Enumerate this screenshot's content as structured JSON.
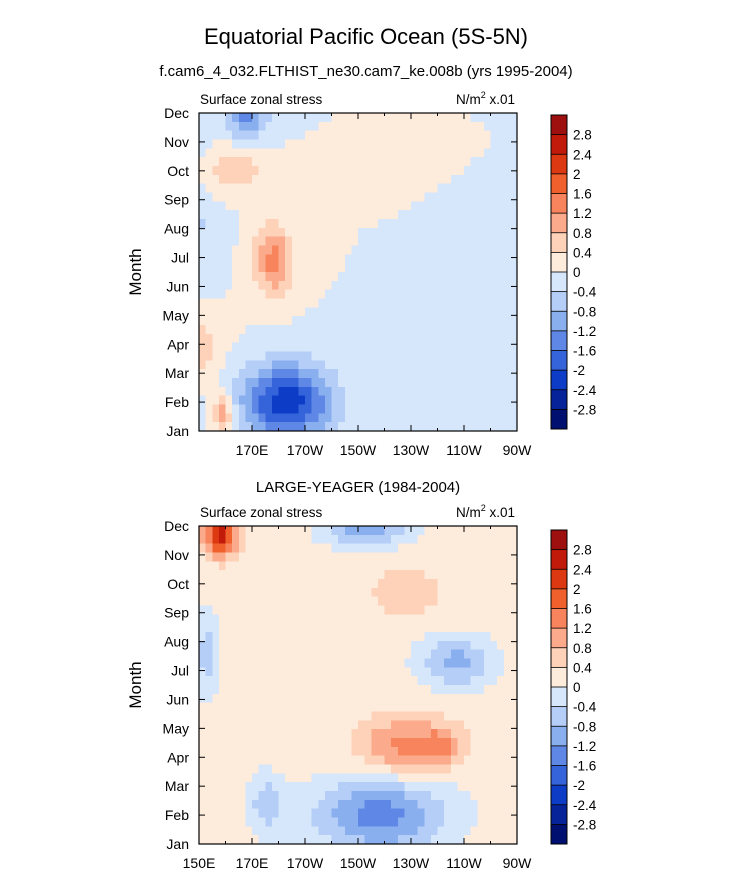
{
  "figure": {
    "title": "Equatorial Pacific Ocean (5S-5N)"
  },
  "colorbar": {
    "levels": [
      "2.8",
      "2.4",
      "2",
      "1.6",
      "1.2",
      "0.8",
      "0.4",
      "0",
      "-0.4",
      "-0.8",
      "-1.2",
      "-1.6",
      "-2",
      "-2.4",
      "-2.8"
    ],
    "colors": [
      "#9e0f0f",
      "#c21a0a",
      "#dc3811",
      "#f0602c",
      "#f7845c",
      "#fbab8c",
      "#fdd2b9",
      "#fdebdc",
      "#d6e6fb",
      "#b4cef7",
      "#8aafef",
      "#5f88e6",
      "#3563da",
      "#0d3cc6",
      "#06239a",
      "#001070"
    ]
  },
  "chart_data": [
    {
      "type": "heatmap",
      "title": "f.cam6_4_032.FLTHIST_ne30.cam7_ke.008b (yrs 1995-2004)",
      "left_string": "Surface zonal stress",
      "right_string": "N/m",
      "right_sup": "2",
      "right_suffix": " x.01",
      "ylabel": "Month",
      "xticks": [
        "170E",
        "170W",
        "150W",
        "130W",
        "110W",
        "90W"
      ],
      "yticks": [
        "Jan",
        "Feb",
        "Mar",
        "Apr",
        "May",
        "Jun",
        "Jul",
        "Aug",
        "Sep",
        "Oct",
        "Nov",
        "Dec"
      ],
      "xlim": [
        150,
        270
      ],
      "ylim": [
        1,
        12
      ],
      "z_units": "N/m2 x .01",
      "grid": false,
      "features": [
        {
          "x": 132,
          "y": 3.9,
          "sx": 16,
          "sy": 1.1,
          "a": 3.0
        },
        {
          "x": 178,
          "y": 6.9,
          "sx": 7,
          "sy": 1.2,
          "a": 1.4
        },
        {
          "x": 159,
          "y": 1.6,
          "sx": 4,
          "sy": 0.7,
          "a": 1.2
        },
        {
          "x": 183,
          "y": 2.0,
          "sx": 17,
          "sy": 1.3,
          "a": -2.3
        },
        {
          "x": 130,
          "y": 8.3,
          "sx": 16,
          "sy": 1.8,
          "a": -2.4
        },
        {
          "x": 122,
          "y": 6.8,
          "sx": 5,
          "sy": 0.8,
          "a": -0.8
        },
        {
          "x": 168,
          "y": 12.0,
          "sx": 8,
          "sy": 0.9,
          "a": -1.3
        },
        {
          "x": 140,
          "y": 11.5,
          "sx": 10,
          "sy": 0.8,
          "a": -0.8
        },
        {
          "x": 163,
          "y": 10.0,
          "sx": 12,
          "sy": 0.8,
          "a": 0.7
        }
      ]
    },
    {
      "type": "heatmap",
      "title": "LARGE-YEAGER (1984-2004)",
      "left_string": "Surface zonal stress",
      "right_string": "N/m",
      "right_sup": "2",
      "right_suffix": " x.01",
      "ylabel": "Month",
      "xticks": [
        "150E",
        "170E",
        "170W",
        "150W",
        "130W",
        "110W",
        "90W"
      ],
      "yticks": [
        "Jan",
        "Feb",
        "Mar",
        "Apr",
        "May",
        "Jun",
        "Jul",
        "Aug",
        "Sep",
        "Oct",
        "Nov",
        "Dec"
      ],
      "xlim": [
        150,
        270
      ],
      "ylim": [
        1,
        12
      ],
      "z_units": "N/m2 x .01",
      "grid": false,
      "features": [
        {
          "x": 0,
          "y": 0,
          "sx": 1000,
          "sy": 1000,
          "a": 0.2
        },
        {
          "x": 228,
          "y": 4.4,
          "sx": 17,
          "sy": 1.0,
          "a": 1.2
        },
        {
          "x": 242,
          "y": 4.4,
          "sx": 7,
          "sy": 0.6,
          "a": 0.7
        },
        {
          "x": 158,
          "y": 11.7,
          "sx": 6,
          "sy": 0.7,
          "a": 2.4
        },
        {
          "x": 228,
          "y": 9.7,
          "sx": 12,
          "sy": 0.8,
          "a": 0.6
        },
        {
          "x": 218,
          "y": 2.0,
          "sx": 25,
          "sy": 1.3,
          "a": -1.6
        },
        {
          "x": 175,
          "y": 2.4,
          "sx": 7,
          "sy": 1.0,
          "a": -0.8
        },
        {
          "x": 247,
          "y": 7.3,
          "sx": 14,
          "sy": 0.9,
          "a": -1.1
        },
        {
          "x": 213,
          "y": 11.8,
          "sx": 16,
          "sy": 0.5,
          "a": -1.2
        },
        {
          "x": 153,
          "y": 7.5,
          "sx": 4,
          "sy": 1.5,
          "a": -0.8
        }
      ]
    }
  ]
}
